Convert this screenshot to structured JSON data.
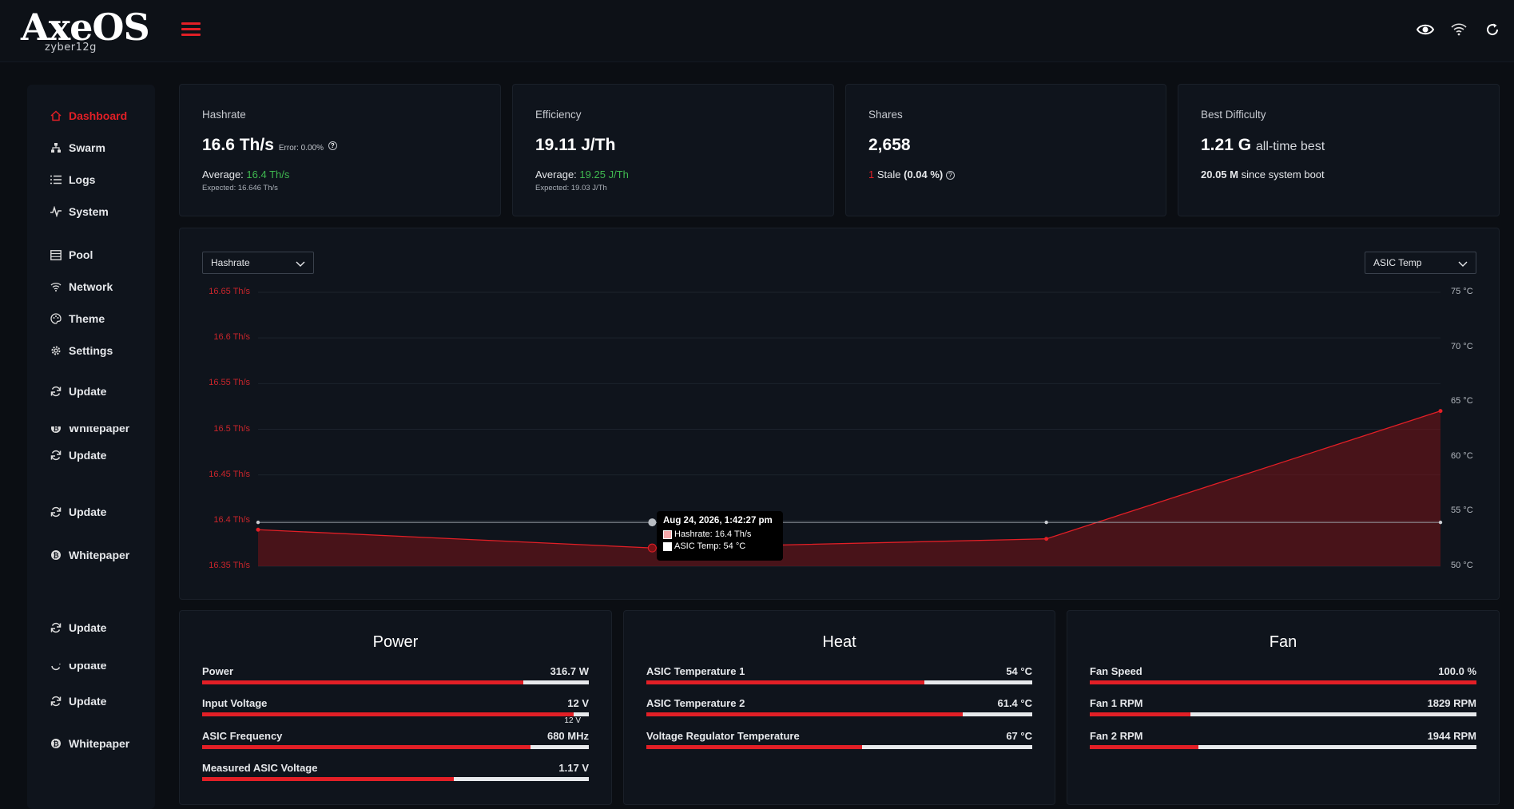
{
  "brand": {
    "logo_text": "AxeOS",
    "user": "zyber12g"
  },
  "colors": {
    "accent": "#e21f26",
    "green": "#3fb950",
    "panel": "#0f141c",
    "background": "#0b0e13"
  },
  "topbar": {
    "icons": [
      "eye-icon",
      "wifi-icon",
      "refresh-icon"
    ]
  },
  "sidebar": {
    "items": [
      {
        "label": "Dashboard",
        "icon": "home-icon",
        "active": true
      },
      {
        "label": "Swarm",
        "icon": "sitemap-icon"
      },
      {
        "label": "Logs",
        "icon": "list-icon"
      },
      {
        "label": "System",
        "icon": "pulse-icon"
      },
      {
        "label": "Pool",
        "icon": "server-icon"
      },
      {
        "label": "Network",
        "icon": "wifi-icon"
      },
      {
        "label": "Theme",
        "icon": "palette-icon"
      },
      {
        "label": "Settings",
        "icon": "gear-icon"
      },
      {
        "label": "Update",
        "icon": "sync-icon"
      },
      {
        "label": "Whitepaper",
        "icon": "bitcoin-icon"
      },
      {
        "label": "Update",
        "icon": "sync-icon"
      },
      {
        "label": "Update",
        "icon": "sync-icon"
      },
      {
        "label": "Whitepaper",
        "icon": "bitcoin-icon"
      },
      {
        "label": "Update",
        "icon": "sync-icon"
      },
      {
        "label": "Update",
        "icon": "sync-icon"
      },
      {
        "label": "Update",
        "icon": "sync-icon"
      },
      {
        "label": "Whitepaper",
        "icon": "bitcoin-icon"
      }
    ]
  },
  "stats": {
    "hashrate": {
      "title": "Hashrate",
      "value": "16.6 Th/s",
      "error": "Error: 0.00%",
      "avg_label": "Average:",
      "avg_value": "16.4 Th/s",
      "expected": "Expected: 16.646 Th/s"
    },
    "efficiency": {
      "title": "Efficiency",
      "value": "19.11 J/Th",
      "avg_label": "Average:",
      "avg_value": "19.25 J/Th",
      "expected": "Expected: 19.03 J/Th"
    },
    "shares": {
      "title": "Shares",
      "value": "2,658",
      "stale_count": "1",
      "stale_label": "Stale",
      "stale_pct": "(0.04 %)"
    },
    "best_difficulty": {
      "title": "Best Difficulty",
      "value": "1.21 G",
      "value_suffix": "all-time best",
      "boot_value": "20.05 M",
      "boot_label": "since system boot"
    }
  },
  "chart_controls": {
    "left_select": "Hashrate",
    "right_select": "ASIC Temp"
  },
  "chart_data": {
    "type": "line",
    "series": [
      {
        "name": "Hashrate",
        "unit": "Th/s",
        "axis": "left",
        "color": "#e21f26",
        "filled": true,
        "values": [
          16.39,
          16.37,
          16.38,
          16.52
        ]
      },
      {
        "name": "ASIC Temp",
        "unit": "°C",
        "axis": "right",
        "color": "#c9ccd1",
        "filled": false,
        "values": [
          54,
          54,
          54,
          54
        ]
      }
    ],
    "left_axis": {
      "ticks": [
        "16.65 Th/s",
        "16.6 Th/s",
        "16.55 Th/s",
        "16.5 Th/s",
        "16.45 Th/s",
        "16.4 Th/s",
        "16.35 Th/s"
      ],
      "ylim": [
        16.35,
        16.65
      ]
    },
    "right_axis": {
      "ticks": [
        "75 °C",
        "70 °C",
        "65 °C",
        "60 °C",
        "55 °C",
        "50 °C"
      ],
      "ylim": [
        50,
        75
      ]
    },
    "tooltip": {
      "title": "Aug 24, 2026, 1:42:27 pm",
      "rows": [
        "Hashrate: 16.4 Th/s",
        "ASIC Temp: 54 °C"
      ]
    }
  },
  "panels": {
    "power": {
      "title": "Power",
      "metrics": [
        {
          "label": "Power",
          "value": "316.7 W",
          "fraction": 0.83
        },
        {
          "label": "Input Voltage",
          "value": "12 V",
          "fraction": 0.96,
          "note": "12 V"
        },
        {
          "label": "ASIC Frequency",
          "value": "680 MHz",
          "fraction": 0.85
        },
        {
          "label": "Measured ASIC Voltage",
          "value": "1.17 V",
          "fraction": 0.65
        }
      ]
    },
    "heat": {
      "title": "Heat",
      "metrics": [
        {
          "label": "ASIC Temperature 1",
          "value": "54 °C",
          "fraction": 0.72
        },
        {
          "label": "ASIC Temperature 2",
          "value": "61.4 °C",
          "fraction": 0.82
        },
        {
          "label": "Voltage Regulator Temperature",
          "value": "67 °C",
          "fraction": 0.56
        }
      ]
    },
    "fan": {
      "title": "Fan",
      "metrics": [
        {
          "label": "Fan Speed",
          "value": "100.0 %",
          "fraction": 1.0
        },
        {
          "label": "Fan 1 RPM",
          "value": "1829 RPM",
          "fraction": 0.26
        },
        {
          "label": "Fan 2 RPM",
          "value": "1944 RPM",
          "fraction": 0.28
        }
      ]
    }
  }
}
